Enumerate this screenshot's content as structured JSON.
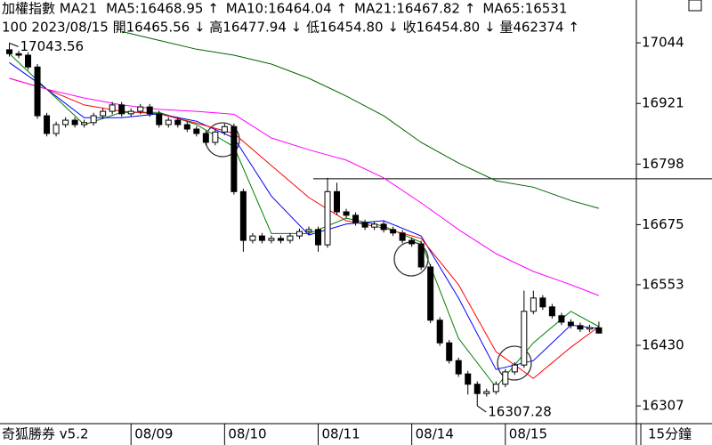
{
  "chart_data": {
    "type": "candlestick",
    "title": "加權指數 MA21",
    "info": "100 2023/08/15 開16465.56 ↓ 高16477.94 ↓ 低16454.80 ↓ 收16454.80 ↓ 量462374 ↑",
    "brand": "奇狐勝券 v5.2",
    "period": "15分鐘",
    "ylim": [
      16271,
      17131
    ],
    "yticks": [
      17044,
      16921,
      16798,
      16675,
      16553,
      16430,
      16307
    ],
    "xlim": [
      -1,
      67
    ],
    "xticks": [
      {
        "value": 13,
        "label": "08/09"
      },
      {
        "value": 23,
        "label": "08/10"
      },
      {
        "value": 33,
        "label": "08/11"
      },
      {
        "value": 43,
        "label": "08/14"
      },
      {
        "value": 53,
        "label": "08/15"
      }
    ],
    "up_color": "#ffffff",
    "down_color": "#000000",
    "open": [
      17030,
      17022,
      17019,
      16995,
      16896,
      16860,
      16878,
      16887,
      16878,
      16882,
      16896,
      16905,
      16918,
      16900,
      16905,
      16914,
      16900,
      16878,
      16887,
      16878,
      16869,
      16860,
      16842,
      16863,
      16874,
      16742,
      16643,
      16652,
      16643,
      16647,
      16643,
      16652,
      16661,
      16665,
      16634,
      16742,
      16701,
      16694,
      16679,
      16670,
      16676,
      16665,
      16658,
      16643,
      16636,
      16589,
      16481,
      16435,
      16399,
      16372,
      16351,
      16332,
      16336,
      16351,
      16376,
      16390,
      16499,
      16526,
      16508,
      16490,
      16477,
      16470,
      16463,
      16465.56
    ],
    "high": [
      17043.56,
      17028,
      17025,
      17001,
      16902,
      16884,
      16893,
      16893,
      16888,
      16902,
      16911,
      16924,
      16924,
      16911,
      16920,
      16920,
      16906,
      16893,
      16893,
      16884,
      16875,
      16866,
      16869,
      16880,
      16880,
      16748,
      16658,
      16658,
      16653,
      16653,
      16658,
      16667,
      16671,
      16671,
      16770,
      16760,
      16707,
      16700,
      16685,
      16682,
      16682,
      16671,
      16664,
      16649,
      16642,
      16595,
      16487,
      16441,
      16405,
      16378,
      16357,
      16342,
      16357,
      16382,
      16396,
      16541,
      16541,
      16532,
      16514,
      16496,
      16483,
      16476,
      16472,
      16477.94
    ],
    "low": [
      17016,
      17013,
      16989,
      16890,
      16854,
      16854,
      16872,
      16872,
      16872,
      16876,
      16890,
      16899,
      16894,
      16894,
      16899,
      16894,
      16872,
      16872,
      16872,
      16863,
      16854,
      16836,
      16836,
      16857,
      16736,
      16620,
      16637,
      16637,
      16637,
      16637,
      16637,
      16646,
      16655,
      16620,
      16628,
      16695,
      16688,
      16673,
      16664,
      16664,
      16659,
      16652,
      16637,
      16630,
      16583,
      16475,
      16429,
      16393,
      16366,
      16330,
      16307.28,
      16326,
      16330,
      16345,
      16370,
      16384,
      16493,
      16502,
      16484,
      16471,
      16464,
      16457,
      16457,
      16454.8
    ],
    "close": [
      17022,
      17019,
      16995,
      16896,
      16860,
      16878,
      16887,
      16878,
      16882,
      16896,
      16905,
      16918,
      16900,
      16905,
      16914,
      16900,
      16878,
      16887,
      16878,
      16869,
      16860,
      16842,
      16863,
      16874,
      16742,
      16643,
      16652,
      16643,
      16647,
      16643,
      16652,
      16661,
      16665,
      16634,
      16742,
      16701,
      16694,
      16679,
      16670,
      16676,
      16665,
      16658,
      16643,
      16636,
      16589,
      16481,
      16435,
      16399,
      16372,
      16351,
      16332,
      16336,
      16351,
      16376,
      16390,
      16499,
      16526,
      16508,
      16490,
      16477,
      16470,
      16463,
      16466,
      16454.8
    ],
    "series": [
      {
        "name": "MA5:16468.95 ↑",
        "color": "#008000",
        "x": [
          0,
          4,
          8,
          12,
          16,
          20,
          24,
          28,
          32,
          36,
          40,
          44,
          48,
          52,
          56,
          60,
          63
        ],
        "values": [
          17022,
          16950,
          16878,
          16903,
          16903,
          16878,
          16833,
          16657,
          16657,
          16688,
          16672,
          16639,
          16444,
          16345,
          16435,
          16499,
          16468
        ]
      },
      {
        "name": "MA10:16464.04 ↑",
        "color": "#0000ff",
        "x": [
          0,
          4,
          8,
          12,
          16,
          20,
          24,
          28,
          32,
          36,
          40,
          44,
          48,
          52,
          56,
          60,
          63
        ],
        "values": [
          17004,
          16950,
          16892,
          16892,
          16900,
          16885,
          16851,
          16733,
          16654,
          16676,
          16683,
          16652,
          16526,
          16381,
          16399,
          16471,
          16464
        ]
      },
      {
        "name": "MA21:16467.82 ↑",
        "color": "#ff0000",
        "x": [
          0,
          4,
          8,
          12,
          16,
          20,
          24,
          28,
          32,
          36,
          40,
          44,
          48,
          52,
          56,
          60,
          63
        ],
        "values": [
          16972,
          16950,
          16918,
          16905,
          16900,
          16881,
          16860,
          16795,
          16730,
          16683,
          16668,
          16647,
          16553,
          16417,
          16363,
          16426,
          16468
        ]
      },
      {
        "name": "MA65:16531",
        "color": "#ff00ff",
        "x": [
          0,
          4,
          8,
          12,
          16,
          20,
          24,
          28,
          32,
          36,
          40,
          44,
          48,
          52,
          56,
          60,
          63
        ],
        "values": [
          16972,
          16950,
          16932,
          16918,
          16909,
          16905,
          16899,
          16851,
          16827,
          16806,
          16770,
          16719,
          16665,
          16616,
          16580,
          16553,
          16531
        ]
      },
      {
        "color": "#006400",
        "x": [
          0,
          4,
          8,
          12,
          16,
          20,
          24,
          28,
          32,
          36,
          40,
          44,
          48,
          52,
          56,
          60,
          63
        ],
        "values": [
          null,
          null,
          null,
          17067,
          17049,
          17031,
          17019,
          17001,
          16972,
          16936,
          16896,
          16842,
          16800,
          16764,
          16751,
          16724,
          16708
        ]
      }
    ],
    "hline": 16768,
    "annotations": [
      {
        "text": "17043.56",
        "x": 0,
        "y": 17043.56
      },
      {
        "text": "16307.28",
        "x": 50,
        "y": 16307.28
      }
    ]
  }
}
